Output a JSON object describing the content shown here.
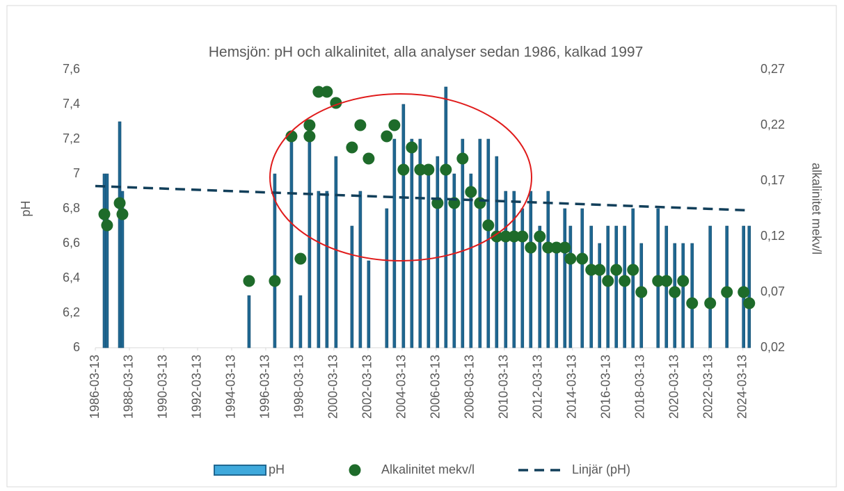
{
  "chart_data": {
    "type": "combo",
    "title": "Hemsjön: pH och alkalinitet, alla analyser sedan 1986, kalkad 1997",
    "y_label": "pH",
    "y2_label": "alkalinitet mekv/l",
    "xlim": [
      1986.2,
      2024.62
    ],
    "xticks": [
      {
        "value": 1986.2,
        "label": "1986-03-13"
      },
      {
        "value": 1988.2,
        "label": "1988-03-13"
      },
      {
        "value": 1990.2,
        "label": "1990-03-13"
      },
      {
        "value": 1992.2,
        "label": "1992-03-13"
      },
      {
        "value": 1994.2,
        "label": "1994-03-13"
      },
      {
        "value": 1996.2,
        "label": "1996-03-13"
      },
      {
        "value": 1998.2,
        "label": "1998-03-13"
      },
      {
        "value": 2000.2,
        "label": "2000-03-13"
      },
      {
        "value": 2002.2,
        "label": "2002-03-13"
      },
      {
        "value": 2004.2,
        "label": "2004-03-13"
      },
      {
        "value": 2006.2,
        "label": "2006-03-13"
      },
      {
        "value": 2008.2,
        "label": "2008-03-13"
      },
      {
        "value": 2010.2,
        "label": "2010-03-13"
      },
      {
        "value": 2012.2,
        "label": "2012-03-13"
      },
      {
        "value": 2014.2,
        "label": "2014-03-13"
      },
      {
        "value": 2016.2,
        "label": "2016-03-13"
      },
      {
        "value": 2018.2,
        "label": "2018-03-13"
      },
      {
        "value": 2020.2,
        "label": "2020-03-13"
      },
      {
        "value": 2022.2,
        "label": "2022-03-13"
      },
      {
        "value": 2024.2,
        "label": "2024-03-13"
      }
    ],
    "ylim": [
      6,
      7.6
    ],
    "yticks": [
      6,
      {
        "value": 6.2,
        "label": "6,2"
      },
      {
        "value": 6.4,
        "label": "6,4"
      },
      {
        "value": 6.6,
        "label": "6,6"
      },
      {
        "value": 6.8,
        "label": "6,8"
      },
      7,
      {
        "value": 7.2,
        "label": "7,2"
      },
      {
        "value": 7.4,
        "label": "7,4"
      },
      {
        "value": 7.6,
        "label": "7,6"
      }
    ],
    "y2lim": [
      0.02,
      0.27
    ],
    "y2ticks": [
      {
        "value": 0.02,
        "label": "0,02"
      },
      {
        "value": 0.07,
        "label": "0,07"
      },
      {
        "value": 0.12,
        "label": "0,12"
      },
      {
        "value": 0.17,
        "label": "0,17"
      },
      {
        "value": 0.22,
        "label": "0,22"
      },
      {
        "value": 0.27,
        "label": "0,27"
      }
    ],
    "grid": false,
    "legend": "bottom",
    "series": [
      {
        "name": "pH",
        "type": "bar",
        "color": "#1f6791",
        "x": [
          1986.73,
          1986.89,
          1987.63,
          1987.79,
          1995.22,
          1996.73,
          1997.71,
          1998.24,
          1998.77,
          1999.3,
          1999.79,
          2000.32,
          2001.26,
          2001.75,
          2002.24,
          2003.3,
          2003.75,
          2004.28,
          2004.77,
          2005.26,
          2005.75,
          2006.28,
          2006.77,
          2007.26,
          2007.75,
          2008.24,
          2008.77,
          2009.26,
          2009.75,
          2010.28,
          2010.77,
          2011.26,
          2011.75,
          2012.28,
          2012.77,
          2013.26,
          2013.75,
          2014.08,
          2014.77,
          2015.3,
          2015.79,
          2016.28,
          2016.77,
          2017.26,
          2017.75,
          2018.24,
          2019.22,
          2019.71,
          2020.2,
          2020.69,
          2021.22,
          2022.28,
          2023.26,
          2024.24,
          2024.57
        ],
        "values": [
          7.0,
          7.0,
          7.3,
          6.9,
          6.3,
          7.0,
          7.2,
          6.3,
          7.2,
          6.9,
          6.9,
          7.1,
          6.7,
          6.9,
          6.5,
          6.8,
          7.2,
          7.4,
          7.2,
          7.2,
          7.0,
          7.1,
          7.5,
          7.0,
          7.2,
          7.0,
          7.2,
          7.2,
          7.1,
          6.9,
          6.9,
          6.8,
          6.9,
          6.7,
          6.9,
          6.6,
          6.8,
          6.7,
          6.8,
          6.7,
          6.6,
          6.7,
          6.7,
          6.7,
          6.8,
          6.6,
          6.8,
          6.7,
          6.6,
          6.6,
          6.6,
          6.7,
          6.7,
          6.7,
          6.7
        ]
      },
      {
        "name": "Alkalinitet mekv/l",
        "type": "scatter",
        "axis": "y2",
        "color": "#1e6b2a",
        "x": [
          1986.73,
          1986.89,
          1987.63,
          1987.79,
          1995.22,
          1996.73,
          1997.71,
          1998.24,
          1998.77,
          1998.77,
          1999.3,
          1999.79,
          2000.32,
          2001.26,
          2001.75,
          2002.24,
          2003.3,
          2003.75,
          2004.28,
          2004.77,
          2005.26,
          2005.75,
          2006.28,
          2006.77,
          2007.26,
          2007.75,
          2008.24,
          2008.77,
          2009.26,
          2009.75,
          2010.28,
          2010.77,
          2011.26,
          2011.75,
          2012.28,
          2012.77,
          2013.26,
          2013.75,
          2014.08,
          2014.77,
          2015.3,
          2015.79,
          2016.28,
          2016.77,
          2017.26,
          2017.75,
          2018.24,
          2019.22,
          2019.71,
          2020.2,
          2020.69,
          2021.22,
          2022.28,
          2023.26,
          2024.24,
          2024.57
        ],
        "values": [
          0.14,
          0.13,
          0.15,
          0.14,
          0.08,
          0.08,
          0.21,
          0.1,
          0.22,
          0.21,
          0.25,
          0.25,
          0.24,
          0.2,
          0.22,
          0.19,
          0.21,
          0.22,
          0.18,
          0.2,
          0.18,
          0.18,
          0.15,
          0.18,
          0.15,
          0.19,
          0.16,
          0.15,
          0.13,
          0.12,
          0.12,
          0.12,
          0.12,
          0.11,
          0.12,
          0.11,
          0.11,
          0.11,
          0.1,
          0.1,
          0.09,
          0.09,
          0.08,
          0.09,
          0.08,
          0.09,
          0.07,
          0.08,
          0.08,
          0.07,
          0.08,
          0.06,
          0.06,
          0.07,
          0.07,
          0.06
        ]
      },
      {
        "name": "Linjär (pH)",
        "type": "line",
        "dashed": true,
        "color": "#123f5a",
        "x": [
          1986.2,
          2024.62
        ],
        "values": [
          6.93,
          6.79
        ]
      }
    ]
  }
}
